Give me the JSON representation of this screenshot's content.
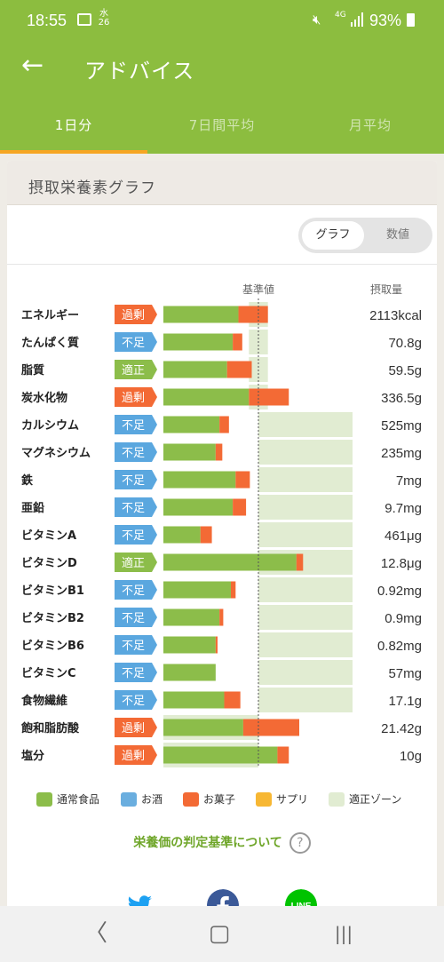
{
  "status": {
    "time": "18:55",
    "date_day": "26",
    "date_weekday": "水",
    "network": "4G",
    "battery": "93%"
  },
  "appbar": {
    "back_glyph": "←",
    "title": "アドバイス"
  },
  "tabs": [
    "1日分",
    "7日間平均",
    "月平均"
  ],
  "card": {
    "title": "摂取栄養素グラフ"
  },
  "toggle": {
    "graph_label": "グラフ",
    "number_label": "数値"
  },
  "chart_data": {
    "type": "bar",
    "stacked": true,
    "reference_label": "基準値",
    "amount_header": "摂取量",
    "unit_note": "bar lengths as fraction of the reference line (基準値 = 1.0)",
    "rows": [
      {
        "name": "エネルギー",
        "status": "過剰",
        "status_type": "over",
        "food": 0.79,
        "snack": 0.31,
        "zone": [
          0.9,
          1.1
        ],
        "amount": "2113kcal"
      },
      {
        "name": "たんぱく質",
        "status": "不足",
        "status_type": "short",
        "food": 0.73,
        "snack": 0.1,
        "zone": [
          0.9,
          1.1
        ],
        "amount": "70.8g"
      },
      {
        "name": "脂質",
        "status": "適正",
        "status_type": "ok",
        "food": 0.67,
        "snack": 0.26,
        "zone": [
          0.9,
          1.1
        ],
        "amount": "59.5g"
      },
      {
        "name": "炭水化物",
        "status": "過剰",
        "status_type": "over",
        "food": 0.9,
        "snack": 0.42,
        "zone": [
          0.9,
          1.1
        ],
        "amount": "336.5g"
      },
      {
        "name": "カルシウム",
        "status": "不足",
        "status_type": "short",
        "food": 0.59,
        "snack": 0.1,
        "zone": [
          1.0,
          2.0
        ],
        "amount": "525mg"
      },
      {
        "name": "マグネシウム",
        "status": "不足",
        "status_type": "short",
        "food": 0.55,
        "snack": 0.07,
        "zone": [
          1.0,
          2.0
        ],
        "amount": "235mg"
      },
      {
        "name": "鉄",
        "status": "不足",
        "status_type": "short",
        "food": 0.76,
        "snack": 0.15,
        "zone": [
          1.0,
          2.0
        ],
        "amount": "7mg"
      },
      {
        "name": "亜鉛",
        "status": "不足",
        "status_type": "short",
        "food": 0.73,
        "snack": 0.14,
        "zone": [
          1.0,
          2.0
        ],
        "amount": "9.7mg"
      },
      {
        "name": "ビタミンA",
        "status": "不足",
        "status_type": "short",
        "food": 0.39,
        "snack": 0.12,
        "zone": [
          1.0,
          2.0
        ],
        "amount": "461μg"
      },
      {
        "name": "ビタミンD",
        "status": "適正",
        "status_type": "ok",
        "food": 1.4,
        "snack": 0.07,
        "zone": [
          1.0,
          2.0
        ],
        "amount": "12.8μg"
      },
      {
        "name": "ビタミンB1",
        "status": "不足",
        "status_type": "short",
        "food": 0.71,
        "snack": 0.05,
        "zone": [
          1.0,
          2.0
        ],
        "amount": "0.92mg"
      },
      {
        "name": "ビタミンB2",
        "status": "不足",
        "status_type": "short",
        "food": 0.59,
        "snack": 0.04,
        "zone": [
          1.0,
          2.0
        ],
        "amount": "0.9mg"
      },
      {
        "name": "ビタミンB6",
        "status": "不足",
        "status_type": "short",
        "food": 0.55,
        "snack": 0.02,
        "zone": [
          1.0,
          2.0
        ],
        "amount": "0.82mg"
      },
      {
        "name": "ビタミンC",
        "status": "不足",
        "status_type": "short",
        "food": 0.55,
        "snack": 0.0,
        "zone": [
          1.0,
          2.0
        ],
        "amount": "57mg"
      },
      {
        "name": "食物繊維",
        "status": "不足",
        "status_type": "short",
        "food": 0.64,
        "snack": 0.17,
        "zone": [
          1.0,
          2.0
        ],
        "amount": "17.1g"
      },
      {
        "name": "飽和脂肪酸",
        "status": "過剰",
        "status_type": "over",
        "food": 0.84,
        "snack": 0.59,
        "zone": [
          0.0,
          1.0
        ],
        "amount": "21.42g"
      },
      {
        "name": "塩分",
        "status": "過剰",
        "status_type": "over",
        "food": 1.2,
        "snack": 0.12,
        "zone": [
          0.0,
          1.0
        ],
        "amount": "10g"
      }
    ]
  },
  "legend": [
    {
      "label": "通常食品",
      "color": "#8cbd4a"
    },
    {
      "label": "お酒",
      "color": "#6aaedf"
    },
    {
      "label": "お菓子",
      "color": "#f36a35"
    },
    {
      "label": "サプリ",
      "color": "#f7b733"
    },
    {
      "label": "適正ゾーン",
      "color": "#e1ecd2"
    }
  ],
  "colors": {
    "over": "#f36a35",
    "short": "#5aa7df",
    "ok": "#8cbd4a",
    "food": "#8cbd4a",
    "snack": "#f36a35",
    "zone": "#e1ecd2"
  },
  "link": {
    "text": "栄養価の判定基準について",
    "help_glyph": "?"
  },
  "share": [
    "twitter-icon",
    "facebook-icon",
    "line-icon"
  ],
  "share_line_label": "LINE",
  "navbar": {
    "back_glyph": "〈",
    "home_glyph": "▢",
    "recents_glyph": "|||"
  }
}
